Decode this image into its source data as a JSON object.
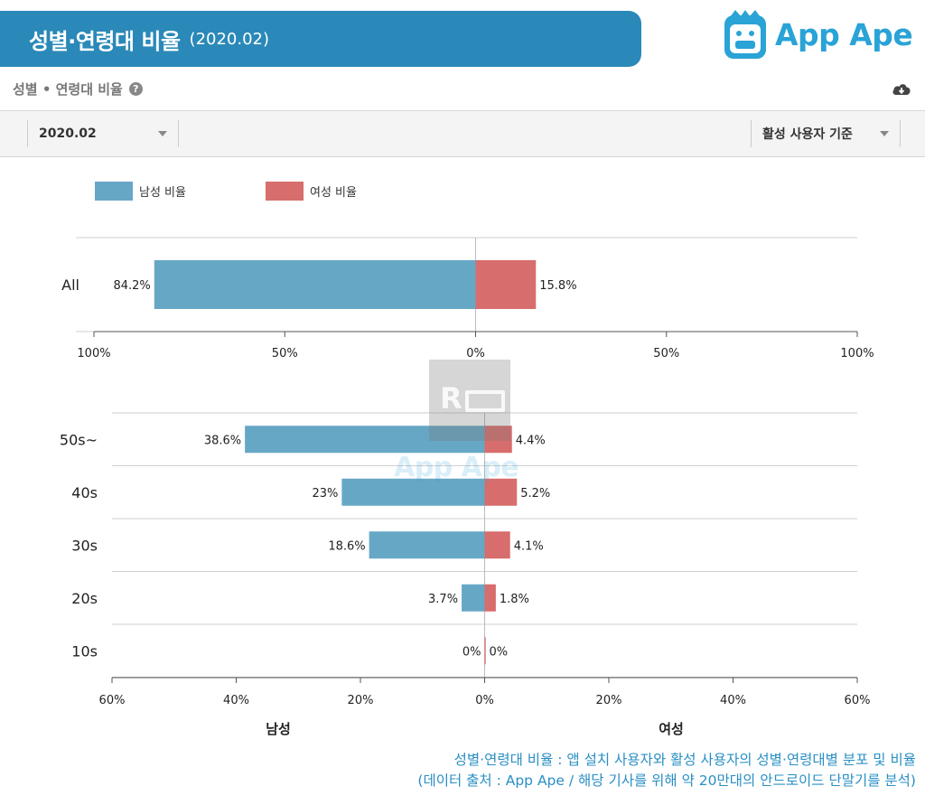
{
  "header": {
    "title": "성별·연령대 비율",
    "period": "(2020.02)",
    "logo_text": "App Ape"
  },
  "section": {
    "title": "성별 • 연령대 비율",
    "help_icon": "question-circle-icon",
    "download_icon": "cloud-download-icon"
  },
  "filters": {
    "date_selected": "2020.02",
    "basis_selected": "활성 사용자 기준"
  },
  "watermark": {
    "text": "R",
    "logo_text": "App Ape"
  },
  "colors": {
    "male": "#67a7c6",
    "female": "#d76d6c",
    "accent": "#2a89b8"
  },
  "chart_data": [
    {
      "type": "bar",
      "orientation": "diverging-horizontal",
      "legend": [
        {
          "name": "남성 비율",
          "color": "#67a7c6"
        },
        {
          "name": "여성 비율",
          "color": "#d76d6c"
        }
      ],
      "categories": [
        "All"
      ],
      "series": [
        {
          "name": "남성 비율",
          "values": [
            84.2
          ],
          "labels": [
            "84.2%"
          ]
        },
        {
          "name": "여성 비율",
          "values": [
            15.8
          ],
          "labels": [
            "15.8%"
          ]
        }
      ],
      "xlim": [
        -100,
        100
      ],
      "ticks": [
        -100,
        -50,
        0,
        50,
        100
      ],
      "tick_labels": [
        "100%",
        "50%",
        "0%",
        "50%",
        "100%"
      ]
    },
    {
      "type": "bar",
      "orientation": "diverging-horizontal",
      "categories": [
        "50s~",
        "40s",
        "30s",
        "20s",
        "10s"
      ],
      "series": [
        {
          "name": "남성 비율",
          "values": [
            38.6,
            23,
            18.6,
            3.7,
            0
          ],
          "labels": [
            "38.6%",
            "23%",
            "18.6%",
            "3.7%",
            "0%"
          ]
        },
        {
          "name": "여성 비율",
          "values": [
            4.4,
            5.2,
            4.1,
            1.8,
            0
          ],
          "labels": [
            "4.4%",
            "5.2%",
            "4.1%",
            "1.8%",
            "0%"
          ]
        }
      ],
      "xlim": [
        -60,
        60
      ],
      "ticks": [
        -60,
        -40,
        -20,
        0,
        20,
        40,
        60
      ],
      "tick_labels": [
        "60%",
        "40%",
        "20%",
        "0%",
        "20%",
        "40%",
        "60%"
      ],
      "xlabel_left": "남성",
      "xlabel_right": "여성"
    }
  ],
  "footnote": {
    "line1": "성별·연령대 비율 : 앱 설치 사용자와 활성 사용자의 성별·연령대별 분포 및 비율",
    "line2": "(데이터 출처 : App Ape / 해당 기사를 위해 약 20만대의 안드로이드 단말기를 분석)"
  }
}
